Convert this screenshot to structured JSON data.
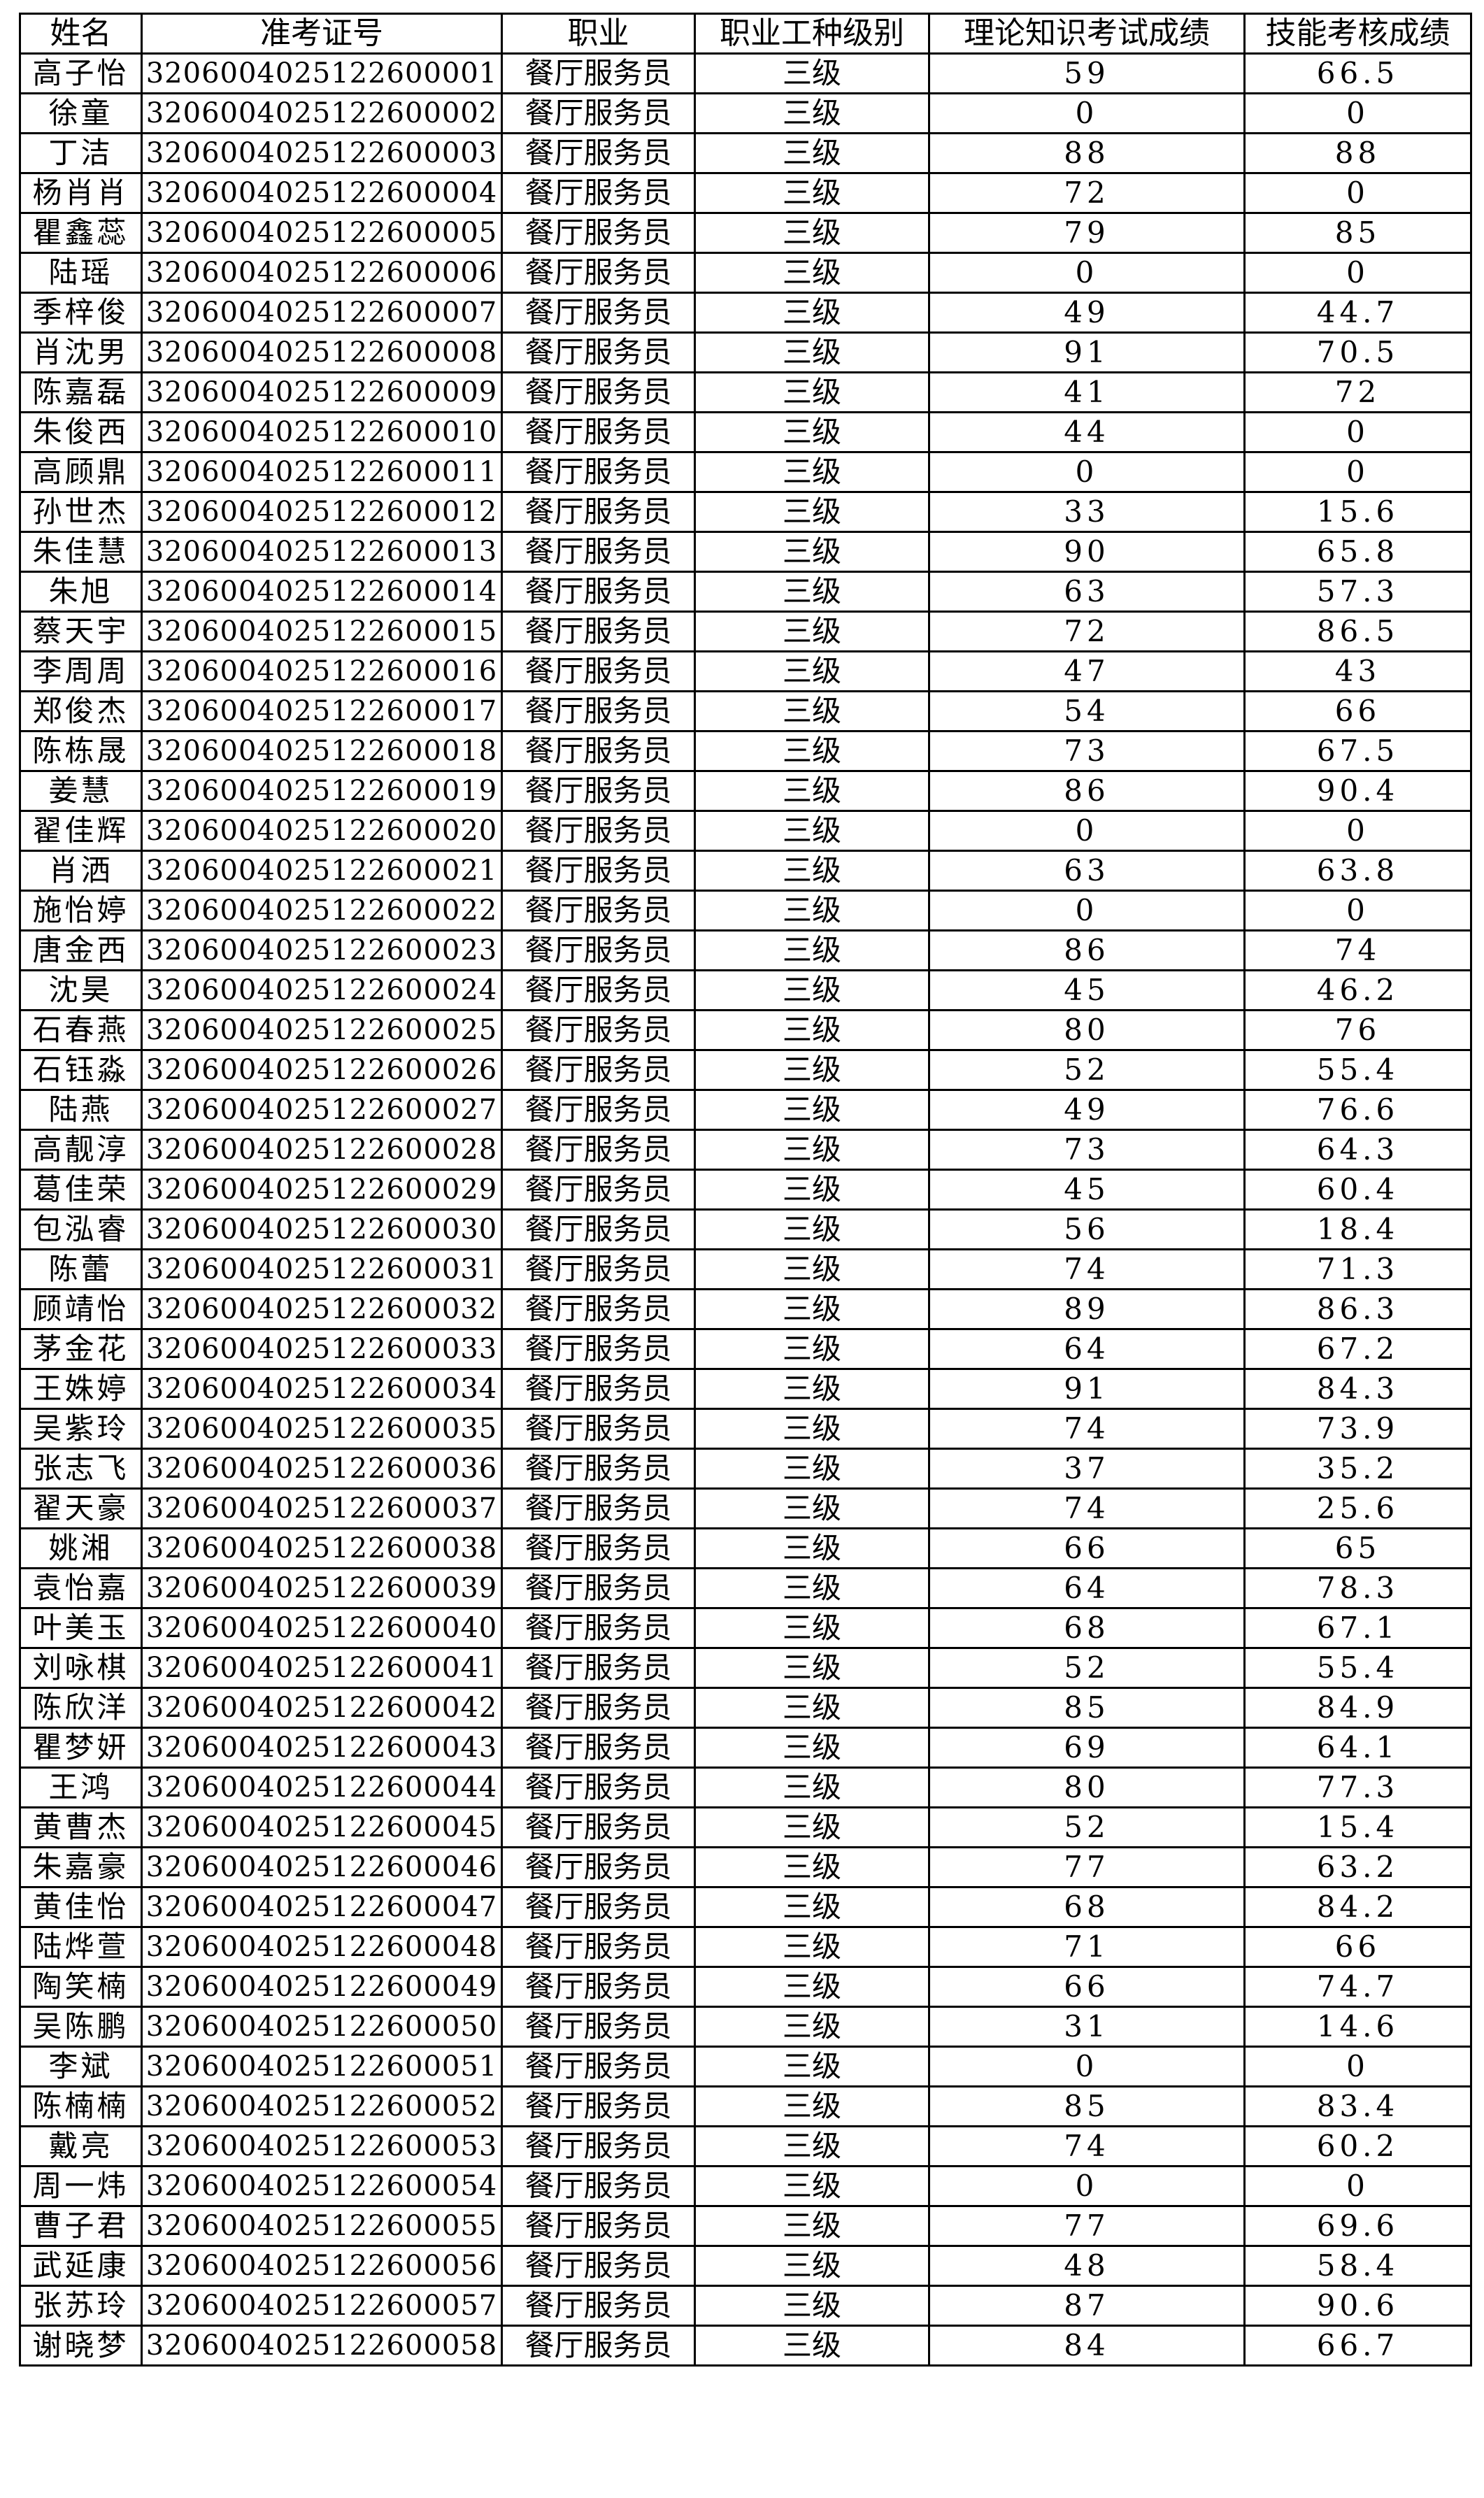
{
  "headers": [
    "姓名",
    "准考证号",
    "职业",
    "职业工种级别",
    "理论知识考试成绩",
    "技能考核成绩"
  ],
  "rows": [
    [
      "高子怡",
      "3206004025122600001",
      "餐厅服务员",
      "三级",
      "59",
      "66.5"
    ],
    [
      "徐童",
      "3206004025122600002",
      "餐厅服务员",
      "三级",
      "0",
      "0"
    ],
    [
      "丁洁",
      "3206004025122600003",
      "餐厅服务员",
      "三级",
      "88",
      "88"
    ],
    [
      "杨肖肖",
      "3206004025122600004",
      "餐厅服务员",
      "三级",
      "72",
      "0"
    ],
    [
      "瞿鑫蕊",
      "3206004025122600005",
      "餐厅服务员",
      "三级",
      "79",
      "85"
    ],
    [
      "陆瑶",
      "3206004025122600006",
      "餐厅服务员",
      "三级",
      "0",
      "0"
    ],
    [
      "季梓俊",
      "3206004025122600007",
      "餐厅服务员",
      "三级",
      "49",
      "44.7"
    ],
    [
      "肖沈男",
      "3206004025122600008",
      "餐厅服务员",
      "三级",
      "91",
      "70.5"
    ],
    [
      "陈嘉磊",
      "3206004025122600009",
      "餐厅服务员",
      "三级",
      "41",
      "72"
    ],
    [
      "朱俊西",
      "3206004025122600010",
      "餐厅服务员",
      "三级",
      "44",
      "0"
    ],
    [
      "高顾鼎",
      "3206004025122600011",
      "餐厅服务员",
      "三级",
      "0",
      "0"
    ],
    [
      "孙世杰",
      "3206004025122600012",
      "餐厅服务员",
      "三级",
      "33",
      "15.6"
    ],
    [
      "朱佳慧",
      "3206004025122600013",
      "餐厅服务员",
      "三级",
      "90",
      "65.8"
    ],
    [
      "朱旭",
      "3206004025122600014",
      "餐厅服务员",
      "三级",
      "63",
      "57.3"
    ],
    [
      "蔡天宇",
      "3206004025122600015",
      "餐厅服务员",
      "三级",
      "72",
      "86.5"
    ],
    [
      "李周周",
      "3206004025122600016",
      "餐厅服务员",
      "三级",
      "47",
      "43"
    ],
    [
      "郑俊杰",
      "3206004025122600017",
      "餐厅服务员",
      "三级",
      "54",
      "66"
    ],
    [
      "陈栋晟",
      "3206004025122600018",
      "餐厅服务员",
      "三级",
      "73",
      "67.5"
    ],
    [
      "姜慧",
      "3206004025122600019",
      "餐厅服务员",
      "三级",
      "86",
      "90.4"
    ],
    [
      "翟佳辉",
      "3206004025122600020",
      "餐厅服务员",
      "三级",
      "0",
      "0"
    ],
    [
      "肖洒",
      "3206004025122600021",
      "餐厅服务员",
      "三级",
      "63",
      "63.8"
    ],
    [
      "施怡婷",
      "3206004025122600022",
      "餐厅服务员",
      "三级",
      "0",
      "0"
    ],
    [
      "唐金西",
      "3206004025122600023",
      "餐厅服务员",
      "三级",
      "86",
      "74"
    ],
    [
      "沈昊",
      "3206004025122600024",
      "餐厅服务员",
      "三级",
      "45",
      "46.2"
    ],
    [
      "石春燕",
      "3206004025122600025",
      "餐厅服务员",
      "三级",
      "80",
      "76"
    ],
    [
      "石钰淼",
      "3206004025122600026",
      "餐厅服务员",
      "三级",
      "52",
      "55.4"
    ],
    [
      "陆燕",
      "3206004025122600027",
      "餐厅服务员",
      "三级",
      "49",
      "76.6"
    ],
    [
      "高靓淳",
      "3206004025122600028",
      "餐厅服务员",
      "三级",
      "73",
      "64.3"
    ],
    [
      "葛佳荣",
      "3206004025122600029",
      "餐厅服务员",
      "三级",
      "45",
      "60.4"
    ],
    [
      "包泓睿",
      "3206004025122600030",
      "餐厅服务员",
      "三级",
      "56",
      "18.4"
    ],
    [
      "陈蕾",
      "3206004025122600031",
      "餐厅服务员",
      "三级",
      "74",
      "71.3"
    ],
    [
      "顾靖怡",
      "3206004025122600032",
      "餐厅服务员",
      "三级",
      "89",
      "86.3"
    ],
    [
      "茅金花",
      "3206004025122600033",
      "餐厅服务员",
      "三级",
      "64",
      "67.2"
    ],
    [
      "王姝婷",
      "3206004025122600034",
      "餐厅服务员",
      "三级",
      "91",
      "84.3"
    ],
    [
      "吴紫玲",
      "3206004025122600035",
      "餐厅服务员",
      "三级",
      "74",
      "73.9"
    ],
    [
      "张志飞",
      "3206004025122600036",
      "餐厅服务员",
      "三级",
      "37",
      "35.2"
    ],
    [
      "翟天豪",
      "3206004025122600037",
      "餐厅服务员",
      "三级",
      "74",
      "25.6"
    ],
    [
      "姚湘",
      "3206004025122600038",
      "餐厅服务员",
      "三级",
      "66",
      "65"
    ],
    [
      "袁怡嘉",
      "3206004025122600039",
      "餐厅服务员",
      "三级",
      "64",
      "78.3"
    ],
    [
      "叶美玉",
      "3206004025122600040",
      "餐厅服务员",
      "三级",
      "68",
      "67.1"
    ],
    [
      "刘咏棋",
      "3206004025122600041",
      "餐厅服务员",
      "三级",
      "52",
      "55.4"
    ],
    [
      "陈欣洋",
      "3206004025122600042",
      "餐厅服务员",
      "三级",
      "85",
      "84.9"
    ],
    [
      "瞿梦妍",
      "3206004025122600043",
      "餐厅服务员",
      "三级",
      "69",
      "64.1"
    ],
    [
      "王鸿",
      "3206004025122600044",
      "餐厅服务员",
      "三级",
      "80",
      "77.3"
    ],
    [
      "黄曹杰",
      "3206004025122600045",
      "餐厅服务员",
      "三级",
      "52",
      "15.4"
    ],
    [
      "朱嘉豪",
      "3206004025122600046",
      "餐厅服务员",
      "三级",
      "77",
      "63.2"
    ],
    [
      "黄佳怡",
      "3206004025122600047",
      "餐厅服务员",
      "三级",
      "68",
      "84.2"
    ],
    [
      "陆烨萱",
      "3206004025122600048",
      "餐厅服务员",
      "三级",
      "71",
      "66"
    ],
    [
      "陶笑楠",
      "3206004025122600049",
      "餐厅服务员",
      "三级",
      "66",
      "74.7"
    ],
    [
      "吴陈鹏",
      "3206004025122600050",
      "餐厅服务员",
      "三级",
      "31",
      "14.6"
    ],
    [
      "李斌",
      "3206004025122600051",
      "餐厅服务员",
      "三级",
      "0",
      "0"
    ],
    [
      "陈楠楠",
      "3206004025122600052",
      "餐厅服务员",
      "三级",
      "85",
      "83.4"
    ],
    [
      "戴亮",
      "3206004025122600053",
      "餐厅服务员",
      "三级",
      "74",
      "60.2"
    ],
    [
      "周一炜",
      "3206004025122600054",
      "餐厅服务员",
      "三级",
      "0",
      "0"
    ],
    [
      "曹子君",
      "3206004025122600055",
      "餐厅服务员",
      "三级",
      "77",
      "69.6"
    ],
    [
      "武延康",
      "3206004025122600056",
      "餐厅服务员",
      "三级",
      "48",
      "58.4"
    ],
    [
      "张苏玲",
      "3206004025122600057",
      "餐厅服务员",
      "三级",
      "87",
      "90.6"
    ],
    [
      "谢晓梦",
      "3206004025122600058",
      "餐厅服务员",
      "三级",
      "84",
      "66.7"
    ]
  ]
}
